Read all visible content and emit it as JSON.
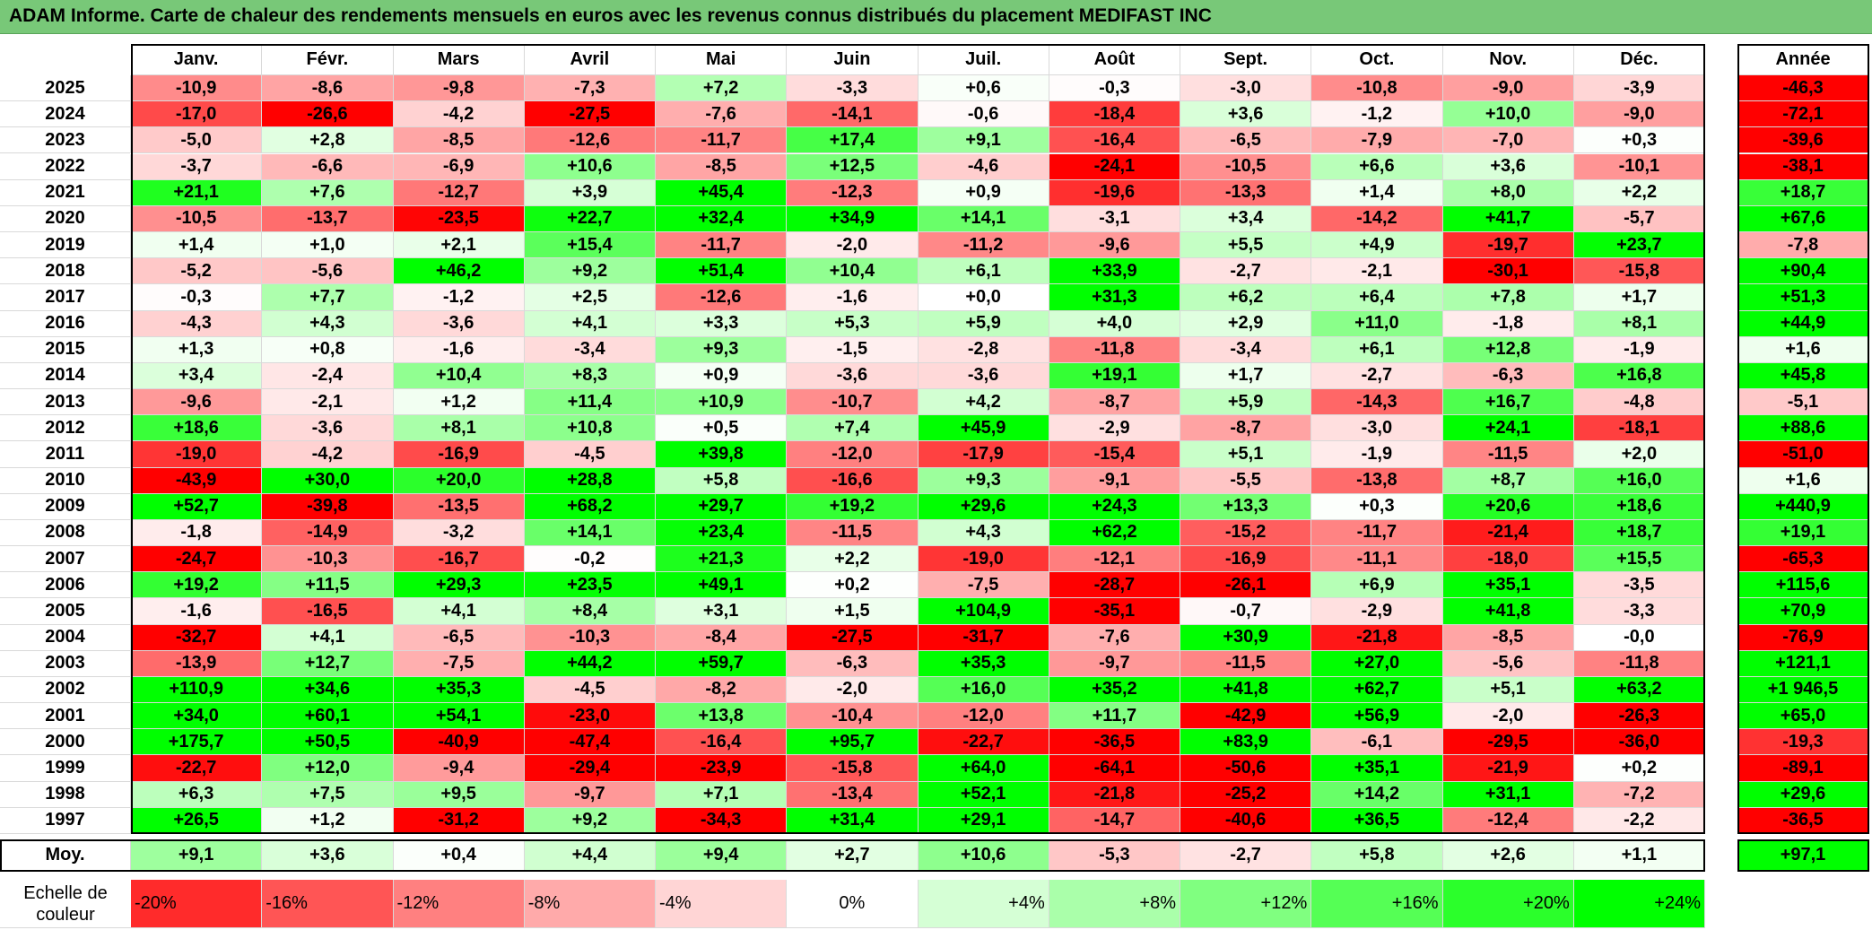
{
  "title": "ADAM Informe. Carte de chaleur des rendements mensuels en euros avec les revenus connus distribués du placement MEDIFAST INC",
  "colors": {
    "title_bg": "#78c878",
    "negative_max": "#ff0000",
    "neutral": "#ffffff",
    "positive_max": "#00ff00"
  },
  "chart_data": {
    "type": "heatmap",
    "title": "ADAM Informe. Carte de chaleur des rendements mensuels en euros avec les revenus connus distribués du placement MEDIFAST INC",
    "months": [
      "Janv.",
      "Févr.",
      "Mars",
      "Avril",
      "Mai",
      "Juin",
      "Juil.",
      "Août",
      "Sept.",
      "Oct.",
      "Nov.",
      "Déc."
    ],
    "annee_label": "Année",
    "rows": [
      {
        "year": "2025",
        "values": [
          "-10,9",
          "-8,6",
          "-9,8",
          "-7,3",
          "+7,2",
          "-3,3",
          "+0,6",
          "-0,3",
          "-3,0",
          "-10,8",
          "-9,0",
          "-3,9"
        ],
        "annee": "-46,3"
      },
      {
        "year": "2024",
        "values": [
          "-17,0",
          "-26,6",
          "-4,2",
          "-27,5",
          "-7,6",
          "-14,1",
          "-0,6",
          "-18,4",
          "+3,6",
          "-1,2",
          "+10,0",
          "-9,0"
        ],
        "annee": "-72,1"
      },
      {
        "year": "2023",
        "values": [
          "-5,0",
          "+2,8",
          "-8,5",
          "-12,6",
          "-11,7",
          "+17,4",
          "+9,1",
          "-16,4",
          "-6,5",
          "-7,9",
          "-7,0",
          "+0,3"
        ],
        "annee": "-39,6"
      },
      {
        "year": "2022",
        "values": [
          "-3,7",
          "-6,6",
          "-6,9",
          "+10,6",
          "-8,5",
          "+12,5",
          "-4,6",
          "-24,1",
          "-10,5",
          "+6,6",
          "+3,6",
          "-10,1"
        ],
        "annee": "-38,1"
      },
      {
        "year": "2021",
        "values": [
          "+21,1",
          "+7,6",
          "-12,7",
          "+3,9",
          "+45,4",
          "-12,3",
          "+0,9",
          "-19,6",
          "-13,3",
          "+1,4",
          "+8,0",
          "+2,2"
        ],
        "annee": "+18,7"
      },
      {
        "year": "2020",
        "values": [
          "-10,5",
          "-13,7",
          "-23,5",
          "+22,7",
          "+32,4",
          "+34,9",
          "+14,1",
          "-3,1",
          "+3,4",
          "-14,2",
          "+41,7",
          "-5,7"
        ],
        "annee": "+67,6"
      },
      {
        "year": "2019",
        "values": [
          "+1,4",
          "+1,0",
          "+2,1",
          "+15,4",
          "-11,7",
          "-2,0",
          "-11,2",
          "-9,6",
          "+5,5",
          "+4,9",
          "-19,7",
          "+23,7"
        ],
        "annee": "-7,8"
      },
      {
        "year": "2018",
        "values": [
          "-5,2",
          "-5,6",
          "+46,2",
          "+9,2",
          "+51,4",
          "+10,4",
          "+6,1",
          "+33,9",
          "-2,7",
          "-2,1",
          "-30,1",
          "-15,8"
        ],
        "annee": "+90,4"
      },
      {
        "year": "2017",
        "values": [
          "-0,3",
          "+7,7",
          "-1,2",
          "+2,5",
          "-12,6",
          "-1,6",
          "+0,0",
          "+31,3",
          "+6,2",
          "+6,4",
          "+7,8",
          "+1,7"
        ],
        "annee": "+51,3"
      },
      {
        "year": "2016",
        "values": [
          "-4,3",
          "+4,3",
          "-3,6",
          "+4,1",
          "+3,3",
          "+5,3",
          "+5,9",
          "+4,0",
          "+2,9",
          "+11,0",
          "-1,8",
          "+8,1"
        ],
        "annee": "+44,9"
      },
      {
        "year": "2015",
        "values": [
          "+1,3",
          "+0,8",
          "-1,6",
          "-3,4",
          "+9,3",
          "-1,5",
          "-2,8",
          "-11,8",
          "-3,4",
          "+6,1",
          "+12,8",
          "-1,9"
        ],
        "annee": "+1,6"
      },
      {
        "year": "2014",
        "values": [
          "+3,4",
          "-2,4",
          "+10,4",
          "+8,3",
          "+0,9",
          "-3,6",
          "-3,6",
          "+19,1",
          "+1,7",
          "-2,7",
          "-6,3",
          "+16,8"
        ],
        "annee": "+45,8"
      },
      {
        "year": "2013",
        "values": [
          "-9,6",
          "-2,1",
          "+1,2",
          "+11,4",
          "+10,9",
          "-10,7",
          "+4,2",
          "-8,7",
          "+5,9",
          "-14,3",
          "+16,7",
          "-4,8"
        ],
        "annee": "-5,1"
      },
      {
        "year": "2012",
        "values": [
          "+18,6",
          "-3,6",
          "+8,1",
          "+10,8",
          "+0,5",
          "+7,4",
          "+45,9",
          "-2,9",
          "-8,7",
          "-3,0",
          "+24,1",
          "-18,1"
        ],
        "annee": "+88,6"
      },
      {
        "year": "2011",
        "values": [
          "-19,0",
          "-4,2",
          "-16,9",
          "-4,5",
          "+39,8",
          "-12,0",
          "-17,9",
          "-15,4",
          "+5,1",
          "-1,9",
          "-11,5",
          "+2,0"
        ],
        "annee": "-51,0"
      },
      {
        "year": "2010",
        "values": [
          "-43,9",
          "+30,0",
          "+20,0",
          "+28,8",
          "+5,8",
          "-16,6",
          "+9,3",
          "-9,1",
          "-5,5",
          "-13,8",
          "+8,7",
          "+16,0"
        ],
        "annee": "+1,6"
      },
      {
        "year": "2009",
        "values": [
          "+52,7",
          "-39,8",
          "-13,5",
          "+68,2",
          "+29,7",
          "+19,2",
          "+29,6",
          "+24,3",
          "+13,3",
          "+0,3",
          "+20,6",
          "+18,6"
        ],
        "annee": "+440,9"
      },
      {
        "year": "2008",
        "values": [
          "-1,8",
          "-14,9",
          "-3,2",
          "+14,1",
          "+23,4",
          "-11,5",
          "+4,3",
          "+62,2",
          "-15,2",
          "-11,7",
          "-21,4",
          "+18,7"
        ],
        "annee": "+19,1"
      },
      {
        "year": "2007",
        "values": [
          "-24,7",
          "-10,3",
          "-16,7",
          "-0,2",
          "+21,3",
          "+2,2",
          "-19,0",
          "-12,1",
          "-16,9",
          "-11,1",
          "-18,0",
          "+15,5"
        ],
        "annee": "-65,3"
      },
      {
        "year": "2006",
        "values": [
          "+19,2",
          "+11,5",
          "+29,3",
          "+23,5",
          "+49,1",
          "+0,2",
          "-7,5",
          "-28,7",
          "-26,1",
          "+6,9",
          "+35,1",
          "-3,5"
        ],
        "annee": "+115,6"
      },
      {
        "year": "2005",
        "values": [
          "-1,6",
          "-16,5",
          "+4,1",
          "+8,4",
          "+3,1",
          "+1,5",
          "+104,9",
          "-35,1",
          "-0,7",
          "-2,9",
          "+41,8",
          "-3,3"
        ],
        "annee": "+70,9"
      },
      {
        "year": "2004",
        "values": [
          "-32,7",
          "+4,1",
          "-6,5",
          "-10,3",
          "-8,4",
          "-27,5",
          "-31,7",
          "-7,6",
          "+30,9",
          "-21,8",
          "-8,5",
          "-0,0"
        ],
        "annee": "-76,9"
      },
      {
        "year": "2003",
        "values": [
          "-13,9",
          "+12,7",
          "-7,5",
          "+44,2",
          "+59,7",
          "-6,3",
          "+35,3",
          "-9,7",
          "-11,5",
          "+27,0",
          "-5,6",
          "-11,8"
        ],
        "annee": "+121,1"
      },
      {
        "year": "2002",
        "values": [
          "+110,9",
          "+34,6",
          "+35,3",
          "-4,5",
          "-8,2",
          "-2,0",
          "+16,0",
          "+35,2",
          "+41,8",
          "+62,7",
          "+5,1",
          "+63,2"
        ],
        "annee": "+1 946,5"
      },
      {
        "year": "2001",
        "values": [
          "+34,0",
          "+60,1",
          "+54,1",
          "-23,0",
          "+13,8",
          "-10,4",
          "-12,0",
          "+11,7",
          "-42,9",
          "+56,9",
          "-2,0",
          "-26,3"
        ],
        "annee": "+65,0"
      },
      {
        "year": "2000",
        "values": [
          "+175,7",
          "+50,5",
          "-40,9",
          "-47,4",
          "-16,4",
          "+95,7",
          "-22,7",
          "-36,5",
          "+83,9",
          "-6,1",
          "-29,5",
          "-36,0"
        ],
        "annee": "-19,3"
      },
      {
        "year": "1999",
        "values": [
          "-22,7",
          "+12,0",
          "-9,4",
          "-29,4",
          "-23,9",
          "-15,8",
          "+64,0",
          "-64,1",
          "-50,6",
          "+35,1",
          "-21,9",
          "+0,2"
        ],
        "annee": "-89,1"
      },
      {
        "year": "1998",
        "values": [
          "+6,3",
          "+7,5",
          "+9,5",
          "-9,7",
          "+7,1",
          "-13,4",
          "+52,1",
          "-21,8",
          "-25,2",
          "+14,2",
          "+31,1",
          "-7,2"
        ],
        "annee": "+29,6"
      },
      {
        "year": "1997",
        "values": [
          "+26,5",
          "+1,2",
          "-31,2",
          "+9,2",
          "-34,3",
          "+31,4",
          "+29,1",
          "-14,7",
          "-40,6",
          "+36,5",
          "-12,4",
          "-2,2"
        ],
        "annee": "-36,5"
      }
    ],
    "average": {
      "label": "Moy.",
      "values": [
        "+9,1",
        "+3,6",
        "+0,4",
        "+4,4",
        "+9,4",
        "+2,7",
        "+10,6",
        "-5,3",
        "-2,7",
        "+5,8",
        "+2,6",
        "+1,1"
      ],
      "annee": "+97,1"
    },
    "legend": {
      "label_line1": "Echelle de",
      "label_line2": "couleur",
      "steps": [
        {
          "text": "-20%",
          "value": -20,
          "align": "left"
        },
        {
          "text": "-16%",
          "value": -16,
          "align": "left"
        },
        {
          "text": "-12%",
          "value": -12,
          "align": "left"
        },
        {
          "text": "-8%",
          "value": -8,
          "align": "left"
        },
        {
          "text": "-4%",
          "value": -4,
          "align": "left"
        },
        {
          "text": "0%",
          "value": 0,
          "align": "center"
        },
        {
          "text": "+4%",
          "value": 4,
          "align": "right"
        },
        {
          "text": "+8%",
          "value": 8,
          "align": "right"
        },
        {
          "text": "+12%",
          "value": 12,
          "align": "right"
        },
        {
          "text": "+16%",
          "value": 16,
          "align": "right"
        },
        {
          "text": "+20%",
          "value": 20,
          "align": "right"
        },
        {
          "text": "+24%",
          "value": 24,
          "align": "right"
        }
      ]
    }
  }
}
